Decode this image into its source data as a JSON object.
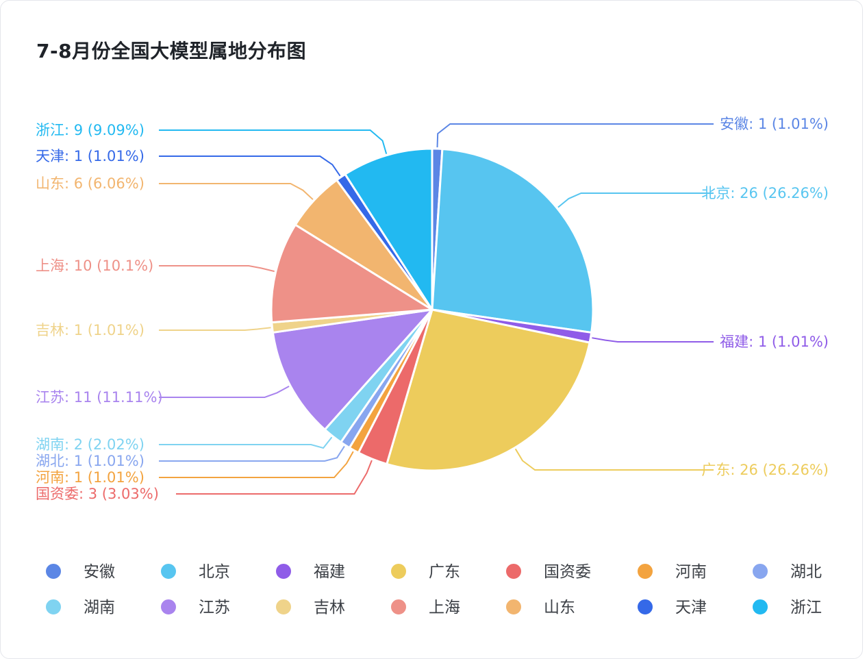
{
  "chart_data": {
    "type": "pie",
    "title": "7-8月份全国大模型属地分布图",
    "start_angle": "top, clockwise",
    "legend_position": "bottom",
    "slices": [
      {
        "name": "安徽",
        "value": 1,
        "percent": "1.01%",
        "color": "#5b86e5"
      },
      {
        "name": "北京",
        "value": 26,
        "percent": "26.26%",
        "color": "#57c5f0"
      },
      {
        "name": "福建",
        "value": 1,
        "percent": "1.01%",
        "color": "#8f5ce8"
      },
      {
        "name": "广东",
        "value": 26,
        "percent": "26.26%",
        "color": "#edcc5c"
      },
      {
        "name": "国资委",
        "value": 3,
        "percent": "3.03%",
        "color": "#ec6a6a"
      },
      {
        "name": "河南",
        "value": 1,
        "percent": "1.01%",
        "color": "#f3a33f"
      },
      {
        "name": "湖北",
        "value": 1,
        "percent": "1.01%",
        "color": "#88a6ef"
      },
      {
        "name": "湖南",
        "value": 2,
        "percent": "2.02%",
        "color": "#7fd3f1"
      },
      {
        "name": "江苏",
        "value": 11,
        "percent": "11.11%",
        "color": "#a984ee"
      },
      {
        "name": "吉林",
        "value": 1,
        "percent": "1.01%",
        "color": "#efd38a"
      },
      {
        "name": "上海",
        "value": 10,
        "percent": "10.1%",
        "color": "#ee9188"
      },
      {
        "name": "山东",
        "value": 6,
        "percent": "6.06%",
        "color": "#f2b56f"
      },
      {
        "name": "天津",
        "value": 1,
        "percent": "1.01%",
        "color": "#3569e8"
      },
      {
        "name": "浙江",
        "value": 9,
        "percent": "9.09%",
        "color": "#22b9f1"
      }
    ]
  }
}
